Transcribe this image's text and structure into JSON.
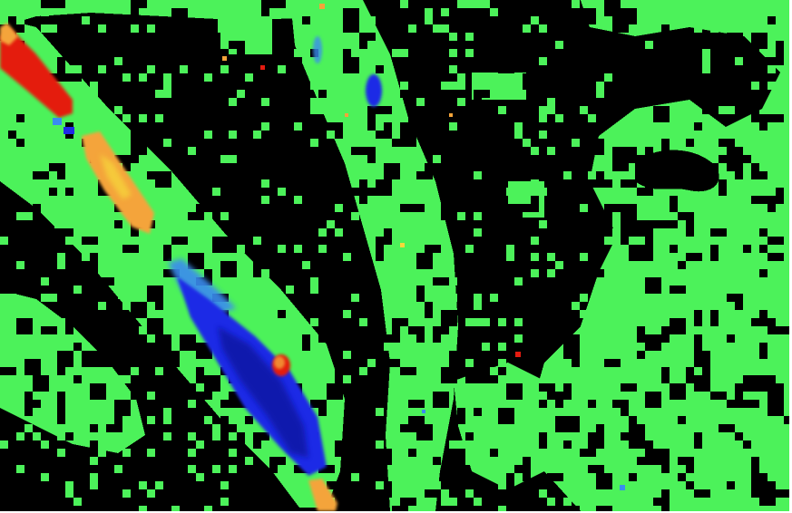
{
  "image": {
    "kind": "false-color classification map",
    "palette": {
      "background": "#000000",
      "class_green": "#4CF25A",
      "class_red": "#E41B10",
      "class_orange": "#F4A43A",
      "class_yellow": "#F6D93B",
      "class_blue": "#1F2BE6",
      "class_light_blue": "#3A8CF0",
      "class_dark_blue": "#0818A0"
    }
  }
}
